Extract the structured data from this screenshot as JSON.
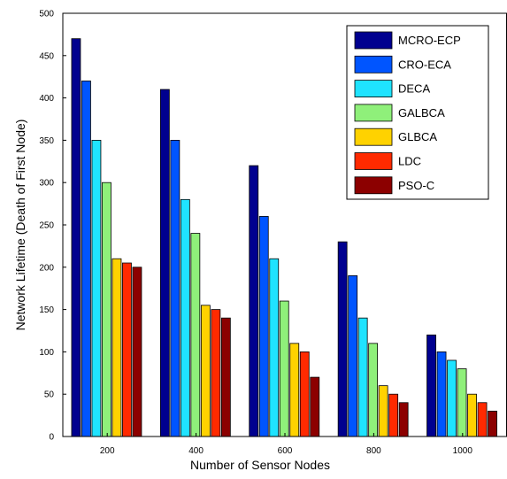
{
  "chart_data": {
    "type": "bar",
    "xlabel": "Number of Sensor Nodes",
    "ylabel": "Network Lifetime (Death of First Node)",
    "ylim": [
      0,
      500
    ],
    "yticks": [
      0,
      50,
      100,
      150,
      200,
      250,
      300,
      350,
      400,
      450,
      500
    ],
    "categories": [
      "200",
      "400",
      "600",
      "800",
      "1000"
    ],
    "grid": false,
    "legend_position": "top-right",
    "series": [
      {
        "name": "MCRO-ECP",
        "color": "#00008f",
        "values": [
          470,
          410,
          320,
          230,
          120
        ]
      },
      {
        "name": "CRO-ECA",
        "color": "#0055ff",
        "values": [
          420,
          350,
          260,
          190,
          100
        ]
      },
      {
        "name": "DECA",
        "color": "#1fe3ff",
        "values": [
          350,
          280,
          210,
          140,
          90
        ]
      },
      {
        "name": "GALBCA",
        "color": "#8ff07a",
        "values": [
          300,
          240,
          160,
          110,
          80
        ]
      },
      {
        "name": "GLBCA",
        "color": "#ffd200",
        "values": [
          210,
          155,
          110,
          60,
          50
        ]
      },
      {
        "name": "LDC",
        "color": "#ff2a00",
        "values": [
          205,
          150,
          100,
          50,
          40
        ]
      },
      {
        "name": "PSO-C",
        "color": "#8c0000",
        "values": [
          200,
          140,
          70,
          40,
          30
        ]
      }
    ]
  }
}
